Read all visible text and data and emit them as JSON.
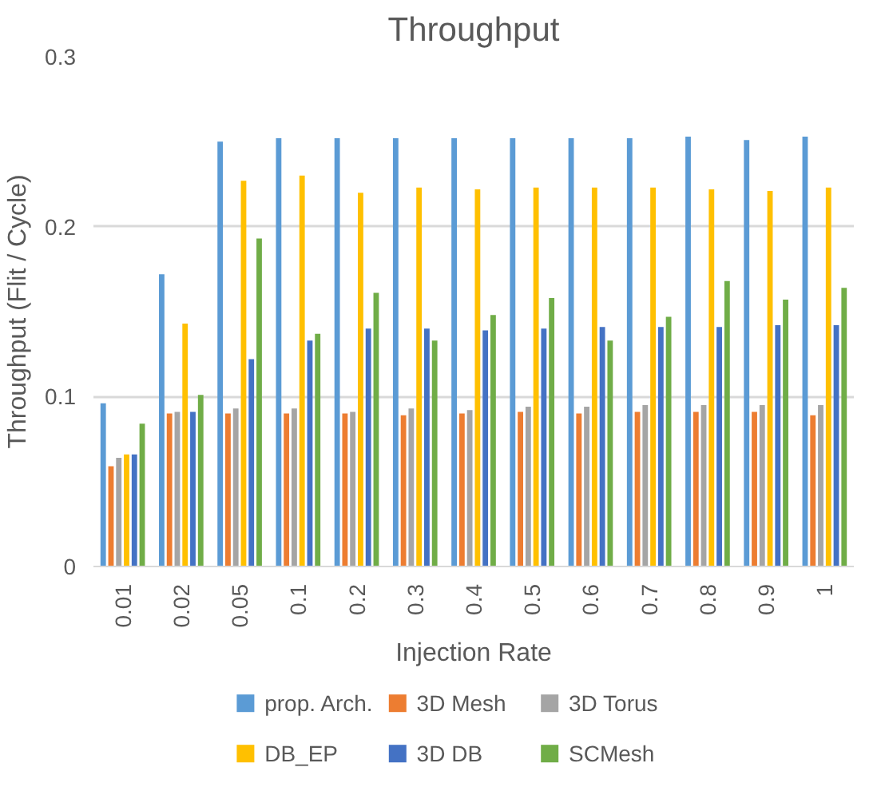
{
  "chart_data": {
    "type": "bar",
    "title": "Throughput",
    "xlabel": "Injection Rate",
    "ylabel": "Throughput (Flit / Cycle)",
    "categories": [
      "0.01",
      "0.02",
      "0.05",
      "0.1",
      "0.2",
      "0.3",
      "0.4",
      "0.5",
      "0.6",
      "0.7",
      "0.8",
      "0.9",
      "1"
    ],
    "series": [
      {
        "name": "prop. Arch.",
        "color": "#5b9bd5",
        "values": [
          0.096,
          0.172,
          0.25,
          0.252,
          0.252,
          0.252,
          0.252,
          0.252,
          0.252,
          0.252,
          0.253,
          0.251,
          0.253
        ]
      },
      {
        "name": "3D Mesh",
        "color": "#ed7d31",
        "values": [
          0.059,
          0.09,
          0.09,
          0.09,
          0.09,
          0.089,
          0.09,
          0.091,
          0.09,
          0.091,
          0.091,
          0.091,
          0.089
        ]
      },
      {
        "name": "3D Torus",
        "color": "#a5a5a5",
        "values": [
          0.064,
          0.091,
          0.093,
          0.093,
          0.091,
          0.093,
          0.092,
          0.094,
          0.094,
          0.095,
          0.095,
          0.095,
          0.095
        ]
      },
      {
        "name": "DB_EP",
        "color": "#ffc000",
        "values": [
          0.066,
          0.143,
          0.227,
          0.23,
          0.22,
          0.223,
          0.222,
          0.223,
          0.223,
          0.223,
          0.222,
          0.221,
          0.223
        ]
      },
      {
        "name": "3D DB",
        "color": "#4472c4",
        "values": [
          0.066,
          0.091,
          0.122,
          0.133,
          0.14,
          0.14,
          0.139,
          0.14,
          0.141,
          0.141,
          0.141,
          0.142,
          0.142
        ]
      },
      {
        "name": "SCMesh",
        "color": "#70ad47",
        "values": [
          0.084,
          0.101,
          0.193,
          0.137,
          0.161,
          0.133,
          0.148,
          0.158,
          0.133,
          0.147,
          0.168,
          0.157,
          0.164
        ]
      }
    ],
    "ylim": [
      0,
      0.3
    ],
    "yticks": [
      0,
      0.1,
      0.2,
      0.3
    ],
    "grid": "y",
    "legend": "bottom"
  }
}
